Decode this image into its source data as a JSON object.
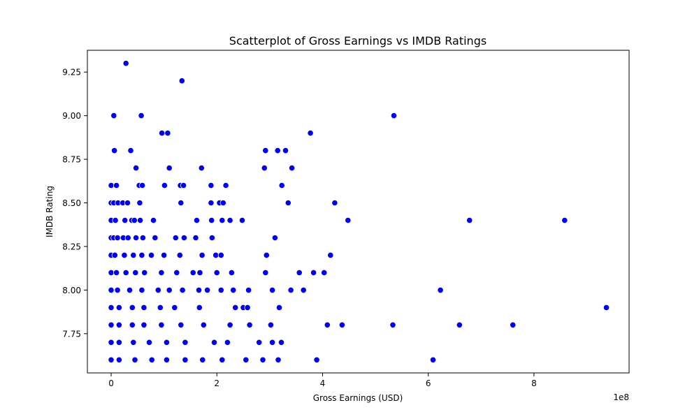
{
  "chart_data": {
    "type": "scatter",
    "title": "Scatterplot of Gross Earnings vs IMDB Ratings",
    "xlabel": "Gross Earnings (USD)",
    "ylabel": "IMDB Rating",
    "x_offset_label": "1e8",
    "x_scale": 100000000,
    "xlim": [
      -0.45,
      9.8
    ],
    "ylim": [
      7.525,
      9.375
    ],
    "x_ticks": [
      0,
      2,
      4,
      6,
      8
    ],
    "x_tick_labels": [
      "0",
      "2",
      "4",
      "6",
      "8"
    ],
    "y_ticks": [
      7.75,
      8.0,
      8.25,
      8.5,
      8.75,
      9.0,
      9.25
    ],
    "y_tick_labels": [
      "7.75",
      "8.00",
      "8.25",
      "8.50",
      "8.75",
      "9.00",
      "9.25"
    ],
    "grid": false,
    "legend": "none",
    "marker_color": "#0000ff",
    "marker_edge_color": "#ffffff",
    "points": [
      {
        "x": 0.28,
        "y": 9.3
      },
      {
        "x": 1.34,
        "y": 9.2
      },
      {
        "x": 0.05,
        "y": 9.0
      },
      {
        "x": 0.57,
        "y": 9.0
      },
      {
        "x": 5.35,
        "y": 9.0
      },
      {
        "x": 0.96,
        "y": 8.9
      },
      {
        "x": 1.07,
        "y": 8.9
      },
      {
        "x": 3.77,
        "y": 8.9
      },
      {
        "x": 0.06,
        "y": 8.8
      },
      {
        "x": 0.37,
        "y": 8.8
      },
      {
        "x": 2.92,
        "y": 8.8
      },
      {
        "x": 3.15,
        "y": 8.8
      },
      {
        "x": 3.3,
        "y": 8.8
      },
      {
        "x": 0.47,
        "y": 8.7
      },
      {
        "x": 1.1,
        "y": 8.7
      },
      {
        "x": 1.71,
        "y": 8.7
      },
      {
        "x": 2.9,
        "y": 8.7
      },
      {
        "x": 3.42,
        "y": 8.7
      },
      {
        "x": 0.0,
        "y": 8.6
      },
      {
        "x": 0.1,
        "y": 8.6
      },
      {
        "x": 0.53,
        "y": 8.6
      },
      {
        "x": 0.59,
        "y": 8.6
      },
      {
        "x": 1.01,
        "y": 8.6
      },
      {
        "x": 1.31,
        "y": 8.6
      },
      {
        "x": 1.37,
        "y": 8.6
      },
      {
        "x": 1.89,
        "y": 8.6
      },
      {
        "x": 2.17,
        "y": 8.6
      },
      {
        "x": 3.23,
        "y": 8.6
      },
      {
        "x": 0.0,
        "y": 8.5
      },
      {
        "x": 0.05,
        "y": 8.5
      },
      {
        "x": 0.13,
        "y": 8.5
      },
      {
        "x": 0.22,
        "y": 8.5
      },
      {
        "x": 0.31,
        "y": 8.5
      },
      {
        "x": 0.54,
        "y": 8.5
      },
      {
        "x": 1.32,
        "y": 8.5
      },
      {
        "x": 1.89,
        "y": 8.5
      },
      {
        "x": 2.05,
        "y": 8.5
      },
      {
        "x": 2.12,
        "y": 8.5
      },
      {
        "x": 3.35,
        "y": 8.5
      },
      {
        "x": 4.23,
        "y": 8.5
      },
      {
        "x": 0.0,
        "y": 8.4
      },
      {
        "x": 0.08,
        "y": 8.4
      },
      {
        "x": 0.26,
        "y": 8.4
      },
      {
        "x": 0.39,
        "y": 8.4
      },
      {
        "x": 0.44,
        "y": 8.4
      },
      {
        "x": 0.55,
        "y": 8.4
      },
      {
        "x": 0.8,
        "y": 8.4
      },
      {
        "x": 1.62,
        "y": 8.4
      },
      {
        "x": 1.9,
        "y": 8.4
      },
      {
        "x": 2.1,
        "y": 8.4
      },
      {
        "x": 2.25,
        "y": 8.4
      },
      {
        "x": 2.48,
        "y": 8.4
      },
      {
        "x": 4.48,
        "y": 8.4
      },
      {
        "x": 6.78,
        "y": 8.4
      },
      {
        "x": 8.58,
        "y": 8.4
      },
      {
        "x": 0.0,
        "y": 8.3
      },
      {
        "x": 0.05,
        "y": 8.3
      },
      {
        "x": 0.12,
        "y": 8.3
      },
      {
        "x": 0.23,
        "y": 8.3
      },
      {
        "x": 0.32,
        "y": 8.3
      },
      {
        "x": 0.47,
        "y": 8.3
      },
      {
        "x": 0.6,
        "y": 8.3
      },
      {
        "x": 0.83,
        "y": 8.3
      },
      {
        "x": 1.22,
        "y": 8.3
      },
      {
        "x": 1.38,
        "y": 8.3
      },
      {
        "x": 1.6,
        "y": 8.3
      },
      {
        "x": 1.91,
        "y": 8.3
      },
      {
        "x": 3.1,
        "y": 8.3
      },
      {
        "x": 0.0,
        "y": 8.2
      },
      {
        "x": 0.07,
        "y": 8.2
      },
      {
        "x": 0.25,
        "y": 8.2
      },
      {
        "x": 0.42,
        "y": 8.2
      },
      {
        "x": 0.58,
        "y": 8.2
      },
      {
        "x": 0.76,
        "y": 8.2
      },
      {
        "x": 1.0,
        "y": 8.2
      },
      {
        "x": 1.3,
        "y": 8.2
      },
      {
        "x": 1.72,
        "y": 8.2
      },
      {
        "x": 1.98,
        "y": 8.2
      },
      {
        "x": 2.08,
        "y": 8.2
      },
      {
        "x": 2.94,
        "y": 8.2
      },
      {
        "x": 4.15,
        "y": 8.2
      },
      {
        "x": 0.0,
        "y": 8.1
      },
      {
        "x": 0.1,
        "y": 8.1
      },
      {
        "x": 0.28,
        "y": 8.1
      },
      {
        "x": 0.46,
        "y": 8.1
      },
      {
        "x": 0.63,
        "y": 8.1
      },
      {
        "x": 0.95,
        "y": 8.1
      },
      {
        "x": 1.24,
        "y": 8.1
      },
      {
        "x": 1.55,
        "y": 8.1
      },
      {
        "x": 1.68,
        "y": 8.1
      },
      {
        "x": 2.0,
        "y": 8.1
      },
      {
        "x": 2.28,
        "y": 8.1
      },
      {
        "x": 2.92,
        "y": 8.1
      },
      {
        "x": 3.56,
        "y": 8.1
      },
      {
        "x": 3.83,
        "y": 8.1
      },
      {
        "x": 4.03,
        "y": 8.1
      },
      {
        "x": 0.0,
        "y": 8.0
      },
      {
        "x": 0.12,
        "y": 8.0
      },
      {
        "x": 0.35,
        "y": 8.0
      },
      {
        "x": 0.58,
        "y": 8.0
      },
      {
        "x": 0.89,
        "y": 8.0
      },
      {
        "x": 1.1,
        "y": 8.0
      },
      {
        "x": 1.35,
        "y": 8.0
      },
      {
        "x": 1.66,
        "y": 8.0
      },
      {
        "x": 1.82,
        "y": 8.0
      },
      {
        "x": 2.08,
        "y": 8.0
      },
      {
        "x": 2.31,
        "y": 8.0
      },
      {
        "x": 2.6,
        "y": 8.0
      },
      {
        "x": 3.05,
        "y": 8.0
      },
      {
        "x": 3.4,
        "y": 8.0
      },
      {
        "x": 3.64,
        "y": 8.0
      },
      {
        "x": 6.23,
        "y": 8.0
      },
      {
        "x": 0.0,
        "y": 7.9
      },
      {
        "x": 0.15,
        "y": 7.9
      },
      {
        "x": 0.4,
        "y": 7.9
      },
      {
        "x": 0.62,
        "y": 7.9
      },
      {
        "x": 0.93,
        "y": 7.9
      },
      {
        "x": 1.2,
        "y": 7.9
      },
      {
        "x": 1.67,
        "y": 7.9
      },
      {
        "x": 2.35,
        "y": 7.9
      },
      {
        "x": 2.5,
        "y": 7.9
      },
      {
        "x": 2.58,
        "y": 7.9
      },
      {
        "x": 3.18,
        "y": 7.9
      },
      {
        "x": 9.37,
        "y": 7.9
      },
      {
        "x": 0.0,
        "y": 7.8
      },
      {
        "x": 0.15,
        "y": 7.8
      },
      {
        "x": 0.4,
        "y": 7.8
      },
      {
        "x": 0.62,
        "y": 7.8
      },
      {
        "x": 0.95,
        "y": 7.8
      },
      {
        "x": 1.32,
        "y": 7.8
      },
      {
        "x": 1.75,
        "y": 7.8
      },
      {
        "x": 2.25,
        "y": 7.8
      },
      {
        "x": 2.62,
        "y": 7.8
      },
      {
        "x": 3.02,
        "y": 7.8
      },
      {
        "x": 4.09,
        "y": 7.8
      },
      {
        "x": 4.37,
        "y": 7.8
      },
      {
        "x": 5.33,
        "y": 7.8
      },
      {
        "x": 6.59,
        "y": 7.8
      },
      {
        "x": 7.6,
        "y": 7.8
      },
      {
        "x": 0.0,
        "y": 7.7
      },
      {
        "x": 0.15,
        "y": 7.7
      },
      {
        "x": 0.42,
        "y": 7.7
      },
      {
        "x": 0.72,
        "y": 7.7
      },
      {
        "x": 1.05,
        "y": 7.7
      },
      {
        "x": 1.4,
        "y": 7.7
      },
      {
        "x": 1.95,
        "y": 7.7
      },
      {
        "x": 2.2,
        "y": 7.7
      },
      {
        "x": 2.8,
        "y": 7.7
      },
      {
        "x": 3.05,
        "y": 7.7
      },
      {
        "x": 3.22,
        "y": 7.7
      },
      {
        "x": 0.0,
        "y": 7.6
      },
      {
        "x": 0.15,
        "y": 7.6
      },
      {
        "x": 0.45,
        "y": 7.6
      },
      {
        "x": 0.77,
        "y": 7.6
      },
      {
        "x": 1.05,
        "y": 7.6
      },
      {
        "x": 1.4,
        "y": 7.6
      },
      {
        "x": 1.73,
        "y": 7.6
      },
      {
        "x": 2.1,
        "y": 7.6
      },
      {
        "x": 2.55,
        "y": 7.6
      },
      {
        "x": 2.87,
        "y": 7.6
      },
      {
        "x": 3.16,
        "y": 7.6
      },
      {
        "x": 3.89,
        "y": 7.6
      },
      {
        "x": 6.09,
        "y": 7.6
      }
    ]
  }
}
